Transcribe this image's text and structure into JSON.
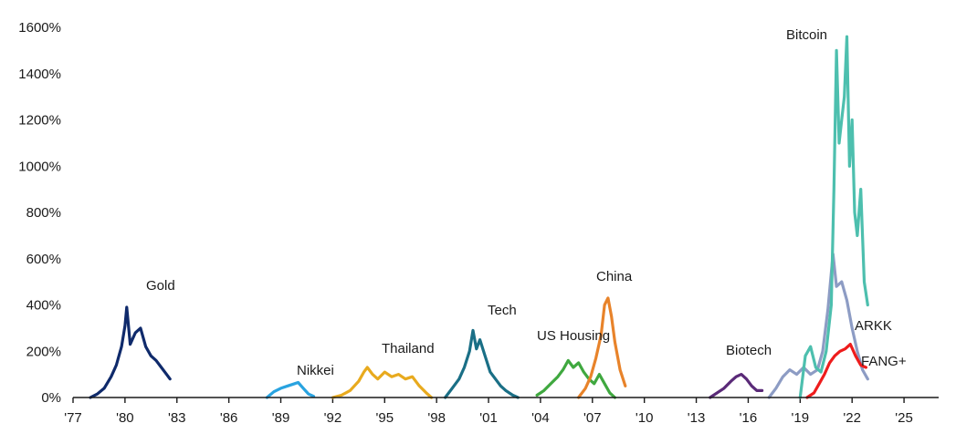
{
  "chart_data": {
    "type": "line",
    "title": "",
    "xlabel": "",
    "ylabel": "",
    "xlim": [
      1977,
      2027
    ],
    "ylim": [
      0,
      1600
    ],
    "yticks": [
      0,
      200,
      400,
      600,
      800,
      1000,
      1200,
      1400,
      1600
    ],
    "ytick_labels": [
      "0%",
      "200%",
      "400%",
      "600%",
      "800%",
      "1000%",
      "1200%",
      "1400%",
      "1600%"
    ],
    "xticks": [
      1977,
      1980,
      1983,
      1986,
      1989,
      1992,
      1995,
      1998,
      2001,
      2004,
      2007,
      2010,
      2013,
      2016,
      2019,
      2022,
      2025
    ],
    "xtick_labels": [
      "'77",
      "'80",
      "'83",
      "'86",
      "'89",
      "'92",
      "'95",
      "'98",
      "'01",
      "'04",
      "'07",
      "'10",
      "'13",
      "'16",
      "'19",
      "'22",
      "'25"
    ],
    "grid": false,
    "legend": "none",
    "series": [
      {
        "name": "Gold",
        "label": "Gold",
        "color": "#0f2a6b",
        "x": [
          1978.0,
          1978.4,
          1978.8,
          1979.2,
          1979.5,
          1979.8,
          1980.0,
          1980.1,
          1980.3,
          1980.6,
          1980.9,
          1981.2,
          1981.5,
          1981.8,
          1982.1,
          1982.4,
          1982.6
        ],
        "y": [
          0,
          15,
          40,
          90,
          140,
          220,
          310,
          390,
          230,
          280,
          300,
          220,
          180,
          160,
          130,
          100,
          80
        ]
      },
      {
        "name": "Nikkei",
        "label": "Nikkei",
        "color": "#29a3e0",
        "x": [
          1988.2,
          1988.6,
          1989.0,
          1989.4,
          1989.8,
          1990.0,
          1990.3,
          1990.6,
          1990.9
        ],
        "y": [
          0,
          25,
          40,
          50,
          60,
          65,
          40,
          15,
          5
        ]
      },
      {
        "name": "Thailand",
        "label": "Thailand",
        "color": "#e8aa1e",
        "x": [
          1992.0,
          1992.5,
          1993.0,
          1993.5,
          1993.8,
          1994.0,
          1994.3,
          1994.6,
          1995.0,
          1995.4,
          1995.8,
          1996.2,
          1996.6,
          1997.0,
          1997.4,
          1997.7
        ],
        "y": [
          0,
          10,
          30,
          70,
          110,
          130,
          100,
          80,
          110,
          90,
          100,
          80,
          90,
          50,
          20,
          0
        ]
      },
      {
        "name": "Tech",
        "label": "Tech",
        "color": "#1a6f86",
        "x": [
          1998.5,
          1998.9,
          1999.3,
          1999.6,
          1999.9,
          2000.1,
          2000.3,
          2000.5,
          2000.8,
          2001.1,
          2001.4,
          2001.7,
          2002.0,
          2002.4,
          2002.7
        ],
        "y": [
          0,
          40,
          80,
          130,
          200,
          290,
          210,
          250,
          180,
          110,
          80,
          50,
          30,
          10,
          0
        ]
      },
      {
        "name": "US Housing",
        "label": "US Housing",
        "color": "#3fa83f",
        "x": [
          2003.8,
          2004.2,
          2004.6,
          2005.0,
          2005.3,
          2005.6,
          2005.9,
          2006.2,
          2006.5,
          2006.8,
          2007.1,
          2007.4,
          2007.7,
          2008.0,
          2008.3
        ],
        "y": [
          10,
          30,
          60,
          90,
          120,
          160,
          130,
          150,
          110,
          80,
          60,
          100,
          60,
          20,
          0
        ]
      },
      {
        "name": "China",
        "label": "China",
        "color": "#e8832a",
        "x": [
          2006.2,
          2006.6,
          2006.9,
          2007.2,
          2007.5,
          2007.7,
          2007.9,
          2008.1,
          2008.3,
          2008.6,
          2008.9
        ],
        "y": [
          0,
          40,
          90,
          170,
          270,
          400,
          430,
          350,
          240,
          120,
          50
        ]
      },
      {
        "name": "Biotech",
        "label": "Biotech",
        "color": "#5a2a78",
        "x": [
          2013.8,
          2014.2,
          2014.6,
          2015.0,
          2015.3,
          2015.6,
          2015.9,
          2016.2,
          2016.5,
          2016.8
        ],
        "y": [
          0,
          20,
          40,
          70,
          90,
          100,
          80,
          50,
          30,
          30
        ]
      },
      {
        "name": "ARKK",
        "label": "ARKK",
        "color": "#8d9cc4",
        "x": [
          2017.2,
          2017.6,
          2018.0,
          2018.4,
          2018.8,
          2019.2,
          2019.6,
          2020.0,
          2020.3,
          2020.6,
          2020.9,
          2021.1,
          2021.4,
          2021.7,
          2022.0,
          2022.3,
          2022.6,
          2022.9
        ],
        "y": [
          0,
          40,
          90,
          120,
          100,
          130,
          100,
          120,
          200,
          380,
          620,
          480,
          500,
          420,
          300,
          200,
          120,
          80
        ]
      },
      {
        "name": "FANG+",
        "label": "FANG+",
        "color": "#ee1c1c",
        "x": [
          2019.4,
          2019.8,
          2020.1,
          2020.4,
          2020.7,
          2021.0,
          2021.3,
          2021.6,
          2021.9,
          2022.2,
          2022.5,
          2022.8
        ],
        "y": [
          0,
          20,
          60,
          100,
          150,
          180,
          200,
          210,
          230,
          180,
          140,
          130
        ]
      },
      {
        "name": "Bitcoin",
        "label": "Bitcoin",
        "color": "#4dbfae",
        "x": [
          2019.0,
          2019.3,
          2019.6,
          2019.9,
          2020.2,
          2020.5,
          2020.8,
          2020.95,
          2021.1,
          2021.25,
          2021.4,
          2021.55,
          2021.7,
          2021.85,
          2022.0,
          2022.15,
          2022.3,
          2022.5,
          2022.7,
          2022.9
        ],
        "y": [
          0,
          180,
          220,
          130,
          110,
          200,
          400,
          900,
          1500,
          1100,
          1200,
          1300,
          1560,
          1000,
          1200,
          800,
          700,
          900,
          500,
          400
        ]
      }
    ],
    "annotations": [
      {
        "text": "Gold",
        "series": "Gold"
      },
      {
        "text": "Nikkei",
        "series": "Nikkei"
      },
      {
        "text": "Thailand",
        "series": "Thailand"
      },
      {
        "text": "Tech",
        "series": "Tech"
      },
      {
        "text": "US Housing",
        "series": "US Housing"
      },
      {
        "text": "China",
        "series": "China"
      },
      {
        "text": "Biotech",
        "series": "Biotech"
      },
      {
        "text": "Bitcoin",
        "series": "Bitcoin"
      },
      {
        "text": "ARKK",
        "series": "ARKK"
      },
      {
        "text": "FANG+",
        "series": "FANG+"
      }
    ]
  }
}
